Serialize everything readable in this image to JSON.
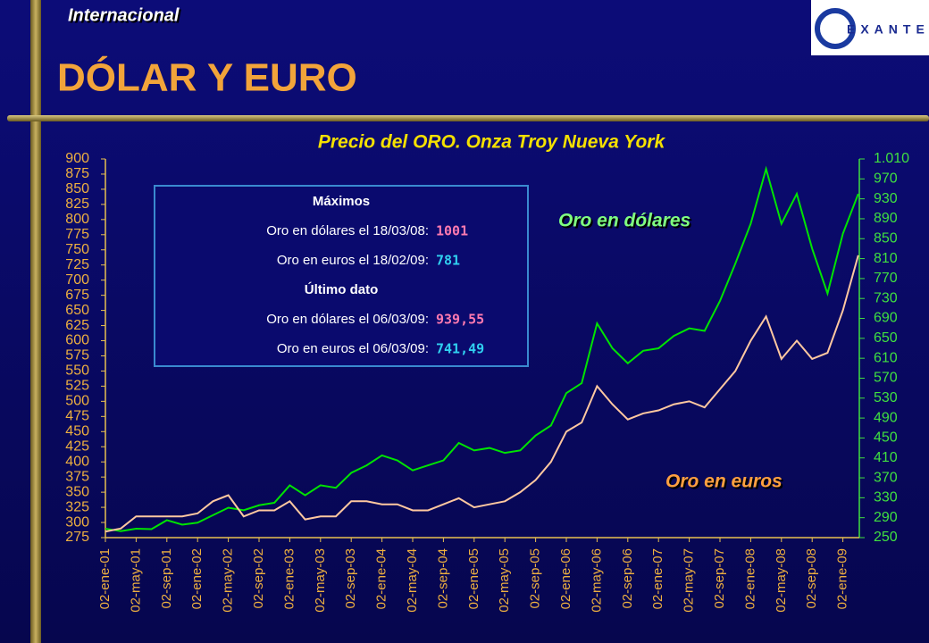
{
  "header": {
    "section": "Internacional",
    "title": "DÓLAR Y EURO",
    "logo": "EXANTE"
  },
  "chart_data": {
    "type": "line",
    "title": "Precio del ORO. Onza Troy  Nueva York",
    "categories": [
      "02-ene-01",
      null,
      "02-may-01",
      null,
      "02-sep-01",
      null,
      "02-ene-02",
      null,
      "02-may-02",
      null,
      "02-sep-02",
      null,
      "02-ene-03",
      null,
      "02-may-03",
      null,
      "02-sep-03",
      null,
      "02-ene-04",
      null,
      "02-may-04",
      null,
      "02-sep-04",
      null,
      "02-ene-05",
      null,
      "02-may-05",
      null,
      "02-sep-05",
      null,
      "02-ene-06",
      null,
      "02-may-06",
      null,
      "02-sep-06",
      null,
      "02-ene-07",
      null,
      "02-may-07",
      null,
      "02-sep-07",
      null,
      "02-ene-08",
      null,
      "02-may-08",
      null,
      "02-sep-08",
      null,
      "02-ene-09",
      null
    ],
    "series": [
      {
        "name": "Oro en dólares",
        "color": "#00e400",
        "axis": "y2",
        "values": [
          268,
          263,
          268,
          267,
          285,
          276,
          280,
          295,
          310,
          305,
          315,
          320,
          355,
          335,
          355,
          350,
          380,
          395,
          415,
          405,
          385,
          395,
          405,
          440,
          425,
          430,
          420,
          425,
          455,
          475,
          540,
          560,
          680,
          630,
          600,
          625,
          630,
          655,
          670,
          665,
          725,
          800,
          880,
          990,
          880,
          940,
          830,
          740,
          860,
          940
        ]
      },
      {
        "name": "Oro en euros",
        "color": "#ffc8a0",
        "values": [
          285,
          290,
          310,
          310,
          310,
          310,
          315,
          335,
          345,
          310,
          320,
          320,
          335,
          305,
          310,
          310,
          335,
          335,
          330,
          330,
          320,
          320,
          330,
          340,
          325,
          330,
          335,
          350,
          370,
          400,
          450,
          465,
          525,
          495,
          470,
          480,
          485,
          495,
          500,
          490,
          520,
          550,
          600,
          640,
          570,
          600,
          570,
          580,
          650,
          741
        ]
      }
    ],
    "ylim": [
      275,
      900
    ],
    "yticks": [
      275,
      300,
      325,
      350,
      375,
      400,
      425,
      450,
      475,
      500,
      525,
      550,
      575,
      600,
      625,
      650,
      675,
      700,
      725,
      750,
      775,
      800,
      825,
      850,
      875,
      900
    ],
    "y2lim": [
      250,
      1010
    ],
    "y2ticks": [
      250,
      290,
      330,
      370,
      410,
      450,
      490,
      530,
      570,
      610,
      650,
      690,
      730,
      770,
      810,
      850,
      890,
      930,
      970,
      {
        "value": 1010,
        "label": "1.010"
      }
    ],
    "info_box": {
      "max_heading": "Máximos",
      "max_rows": [
        {
          "label": "Oro en dólares el 18/03/08:",
          "value": "1001"
        },
        {
          "label": "Oro en euros el 18/02/09:",
          "value": "781"
        }
      ],
      "last_heading": "Último dato",
      "last_rows": [
        {
          "label": "Oro en dólares el 06/03/09:",
          "value": "939,55"
        },
        {
          "label": "Oro en euros el 06/03/09:",
          "value": "741,49"
        }
      ]
    }
  }
}
